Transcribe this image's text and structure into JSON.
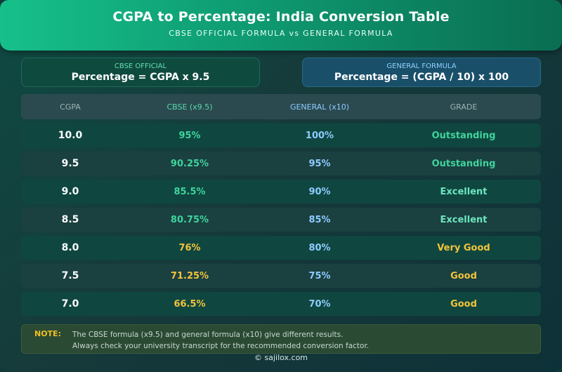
{
  "header": {
    "title": "CGPA to Percentage: India Conversion Table",
    "subtitle": "CBSE OFFICIAL FORMULA vs GENERAL FORMULA"
  },
  "formulas": {
    "cbse": {
      "label": "CBSE OFFICIAL",
      "equation": "Percentage = CGPA x 9.5"
    },
    "general": {
      "label": "GENERAL FORMULA",
      "equation": "Percentage = (CGPA / 10) x 100"
    }
  },
  "table": {
    "headers": [
      "CGPA",
      "CBSE (x9.5)",
      "GENERAL (x10)",
      "GRADE"
    ],
    "rows": [
      {
        "cgpa": "10.0",
        "cbse": "95%",
        "general": "100%",
        "grade": "Outstanding"
      },
      {
        "cgpa": "9.5",
        "cbse": "90.25%",
        "general": "95%",
        "grade": "Outstanding"
      },
      {
        "cgpa": "9.0",
        "cbse": "85.5%",
        "general": "90%",
        "grade": "Excellent"
      },
      {
        "cgpa": "8.5",
        "cbse": "80.75%",
        "general": "85%",
        "grade": "Excellent"
      },
      {
        "cgpa": "8.0",
        "cbse": "76%",
        "general": "80%",
        "grade": "Very Good"
      },
      {
        "cgpa": "7.5",
        "cbse": "71.25%",
        "general": "75%",
        "grade": "Good"
      },
      {
        "cgpa": "7.0",
        "cbse": "66.5%",
        "general": "70%",
        "grade": "Good"
      }
    ]
  },
  "note": {
    "label": "NOTE:",
    "line1": "The CBSE formula (x9.5) and general formula (x10) give different results.",
    "line2": "Always check your university transcript for the recommended conversion factor."
  },
  "footer": "© sajilox.com",
  "colors": {
    "accent": "#16c08a",
    "green": "#3fd49c",
    "yellow": "#f3c33b",
    "blue": "#8fcbff"
  }
}
